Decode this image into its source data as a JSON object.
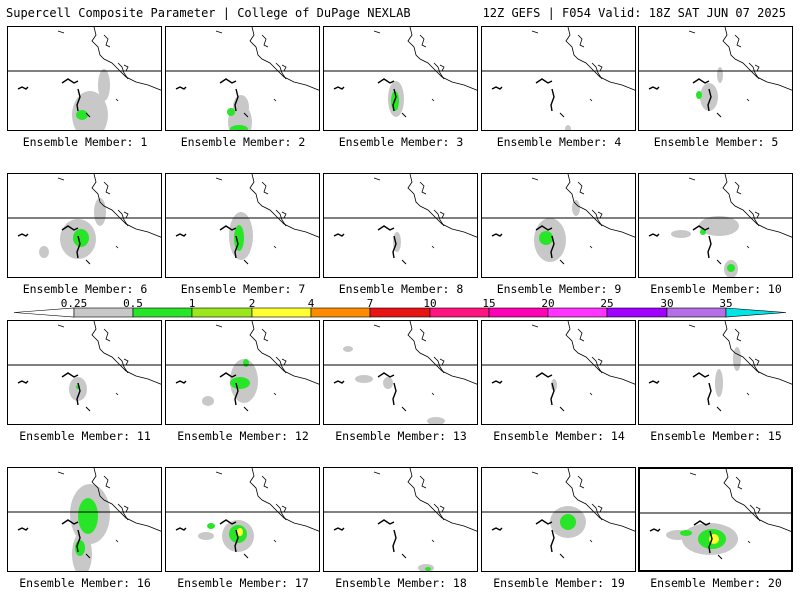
{
  "header": {
    "title": "Supercell Composite Parameter | College of DuPage NEXLAB",
    "valid": "12Z GEFS | F054 Valid: 18Z SAT JUN 07 2025"
  },
  "members": [
    {
      "label": "Ensemble Member: 1",
      "blobs": [
        {
          "c": "gray",
          "x": 82,
          "y": 88,
          "rx": 18,
          "ry": 24
        },
        {
          "c": "gray",
          "x": 96,
          "y": 58,
          "rx": 6,
          "ry": 16
        },
        {
          "c": "green",
          "x": 74,
          "y": 88,
          "rx": 6,
          "ry": 5
        }
      ]
    },
    {
      "label": "Ensemble Member: 2",
      "blobs": [
        {
          "c": "gray",
          "x": 74,
          "y": 95,
          "rx": 12,
          "ry": 18
        },
        {
          "c": "gray",
          "x": 75,
          "y": 80,
          "rx": 8,
          "ry": 12
        },
        {
          "c": "green",
          "x": 73,
          "y": 102,
          "rx": 9,
          "ry": 4
        },
        {
          "c": "green",
          "x": 65,
          "y": 85,
          "rx": 4,
          "ry": 4
        }
      ]
    },
    {
      "label": "Ensemble Member: 3",
      "blobs": [
        {
          "c": "gray",
          "x": 72,
          "y": 72,
          "rx": 8,
          "ry": 18
        },
        {
          "c": "green",
          "x": 71,
          "y": 74,
          "rx": 4,
          "ry": 10
        }
      ]
    },
    {
      "label": "Ensemble Member: 4",
      "blobs": [
        {
          "c": "gray",
          "x": 86,
          "y": 102,
          "rx": 3,
          "ry": 4
        }
      ]
    },
    {
      "label": "Ensemble Member: 5",
      "blobs": [
        {
          "c": "gray",
          "x": 70,
          "y": 70,
          "rx": 9,
          "ry": 14
        },
        {
          "c": "gray",
          "x": 81,
          "y": 48,
          "rx": 3,
          "ry": 8
        },
        {
          "c": "green",
          "x": 60,
          "y": 68,
          "rx": 3,
          "ry": 4
        }
      ]
    },
    {
      "label": "Ensemble Member: 6",
      "blobs": [
        {
          "c": "gray",
          "x": 70,
          "y": 65,
          "rx": 18,
          "ry": 20
        },
        {
          "c": "gray",
          "x": 92,
          "y": 38,
          "rx": 6,
          "ry": 14
        },
        {
          "c": "gray",
          "x": 36,
          "y": 78,
          "rx": 5,
          "ry": 6
        },
        {
          "c": "green",
          "x": 73,
          "y": 64,
          "rx": 8,
          "ry": 9
        }
      ]
    },
    {
      "label": "Ensemble Member: 7",
      "blobs": [
        {
          "c": "gray",
          "x": 75,
          "y": 62,
          "rx": 12,
          "ry": 24
        },
        {
          "c": "green",
          "x": 73,
          "y": 64,
          "rx": 5,
          "ry": 13
        }
      ]
    },
    {
      "label": "Ensemble Member: 8",
      "blobs": [
        {
          "c": "gray",
          "x": 73,
          "y": 68,
          "rx": 4,
          "ry": 10
        }
      ]
    },
    {
      "label": "Ensemble Member: 9",
      "blobs": [
        {
          "c": "gray",
          "x": 68,
          "y": 66,
          "rx": 16,
          "ry": 22
        },
        {
          "c": "gray",
          "x": 94,
          "y": 34,
          "rx": 4,
          "ry": 8
        },
        {
          "c": "green",
          "x": 64,
          "y": 64,
          "rx": 7,
          "ry": 7
        }
      ]
    },
    {
      "label": "Ensemble Member: 10",
      "blobs": [
        {
          "c": "gray",
          "x": 80,
          "y": 52,
          "rx": 20,
          "ry": 10
        },
        {
          "c": "gray",
          "x": 42,
          "y": 60,
          "rx": 10,
          "ry": 4
        },
        {
          "c": "gray",
          "x": 92,
          "y": 95,
          "rx": 7,
          "ry": 9
        },
        {
          "c": "green",
          "x": 64,
          "y": 58,
          "rx": 3,
          "ry": 3
        },
        {
          "c": "green",
          "x": 92,
          "y": 94,
          "rx": 4,
          "ry": 4
        }
      ]
    },
    {
      "label": "Ensemble Member: 11",
      "blobs": [
        {
          "c": "gray",
          "x": 70,
          "y": 68,
          "rx": 9,
          "ry": 12
        },
        {
          "c": "green",
          "x": 70,
          "y": 66,
          "rx": 2,
          "ry": 2
        }
      ]
    },
    {
      "label": "Ensemble Member: 12",
      "blobs": [
        {
          "c": "gray",
          "x": 78,
          "y": 60,
          "rx": 14,
          "ry": 22
        },
        {
          "c": "gray",
          "x": 42,
          "y": 80,
          "rx": 6,
          "ry": 5
        },
        {
          "c": "green",
          "x": 74,
          "y": 62,
          "rx": 10,
          "ry": 6
        },
        {
          "c": "green",
          "x": 80,
          "y": 42,
          "rx": 3,
          "ry": 4
        }
      ]
    },
    {
      "label": "Ensemble Member: 13",
      "blobs": [
        {
          "c": "gray",
          "x": 40,
          "y": 58,
          "rx": 9,
          "ry": 4
        },
        {
          "c": "gray",
          "x": 64,
          "y": 62,
          "rx": 5,
          "ry": 6
        },
        {
          "c": "gray",
          "x": 112,
          "y": 100,
          "rx": 9,
          "ry": 4
        },
        {
          "c": "gray",
          "x": 24,
          "y": 28,
          "rx": 5,
          "ry": 3
        }
      ]
    },
    {
      "label": "Ensemble Member: 14",
      "blobs": [
        {
          "c": "gray",
          "x": 72,
          "y": 64,
          "rx": 3,
          "ry": 6
        }
      ]
    },
    {
      "label": "Ensemble Member: 15",
      "blobs": [
        {
          "c": "gray",
          "x": 80,
          "y": 62,
          "rx": 4,
          "ry": 14
        },
        {
          "c": "gray",
          "x": 98,
          "y": 38,
          "rx": 4,
          "ry": 12
        }
      ]
    },
    {
      "label": "Ensemble Member: 16",
      "blobs": [
        {
          "c": "gray",
          "x": 82,
          "y": 46,
          "rx": 20,
          "ry": 30
        },
        {
          "c": "gray",
          "x": 74,
          "y": 86,
          "rx": 10,
          "ry": 22
        },
        {
          "c": "green",
          "x": 80,
          "y": 48,
          "rx": 10,
          "ry": 18
        },
        {
          "c": "green",
          "x": 72,
          "y": 80,
          "rx": 5,
          "ry": 8
        }
      ]
    },
    {
      "label": "Ensemble Member: 17",
      "blobs": [
        {
          "c": "gray",
          "x": 72,
          "y": 68,
          "rx": 16,
          "ry": 16
        },
        {
          "c": "gray",
          "x": 40,
          "y": 68,
          "rx": 8,
          "ry": 4
        },
        {
          "c": "green",
          "x": 72,
          "y": 66,
          "rx": 9,
          "ry": 9
        },
        {
          "c": "green",
          "x": 45,
          "y": 58,
          "rx": 4,
          "ry": 3
        },
        {
          "c": "yellow",
          "x": 74,
          "y": 64,
          "rx": 3,
          "ry": 4
        }
      ]
    },
    {
      "label": "Ensemble Member: 18",
      "blobs": [
        {
          "c": "gray",
          "x": 102,
          "y": 100,
          "rx": 8,
          "ry": 4
        },
        {
          "c": "green",
          "x": 104,
          "y": 101,
          "rx": 3,
          "ry": 2
        }
      ]
    },
    {
      "label": "Ensemble Member: 19",
      "blobs": [
        {
          "c": "gray",
          "x": 86,
          "y": 54,
          "rx": 18,
          "ry": 16
        },
        {
          "c": "green",
          "x": 86,
          "y": 54,
          "rx": 8,
          "ry": 8
        }
      ]
    },
    {
      "label": "Ensemble Member: 20",
      "blobs": [
        {
          "c": "gray",
          "x": 70,
          "y": 70,
          "rx": 28,
          "ry": 16
        },
        {
          "c": "gray",
          "x": 38,
          "y": 66,
          "rx": 12,
          "ry": 5
        },
        {
          "c": "green",
          "x": 72,
          "y": 70,
          "rx": 14,
          "ry": 10
        },
        {
          "c": "green",
          "x": 46,
          "y": 64,
          "rx": 6,
          "ry": 3
        },
        {
          "c": "yellow",
          "x": 74,
          "y": 70,
          "rx": 5,
          "ry": 5
        }
      ]
    }
  ],
  "colorbar": {
    "ticks": [
      "0.25",
      "0.5",
      "1",
      "2",
      "4",
      "7",
      "10",
      "15",
      "20",
      "25",
      "30",
      "35"
    ],
    "colors": [
      "#c8c8c8",
      "#28e528",
      "#9ae81c",
      "#ffff32",
      "#ff8c00",
      "#e81414",
      "#ff1480",
      "#ff00b4",
      "#ff32ff",
      "#a000ff",
      "#b46ee6",
      "#00e6e6"
    ],
    "field_colors": {
      "gray": "#c8c8c8",
      "green": "#28e528",
      "yellow": "#ffff32"
    }
  }
}
